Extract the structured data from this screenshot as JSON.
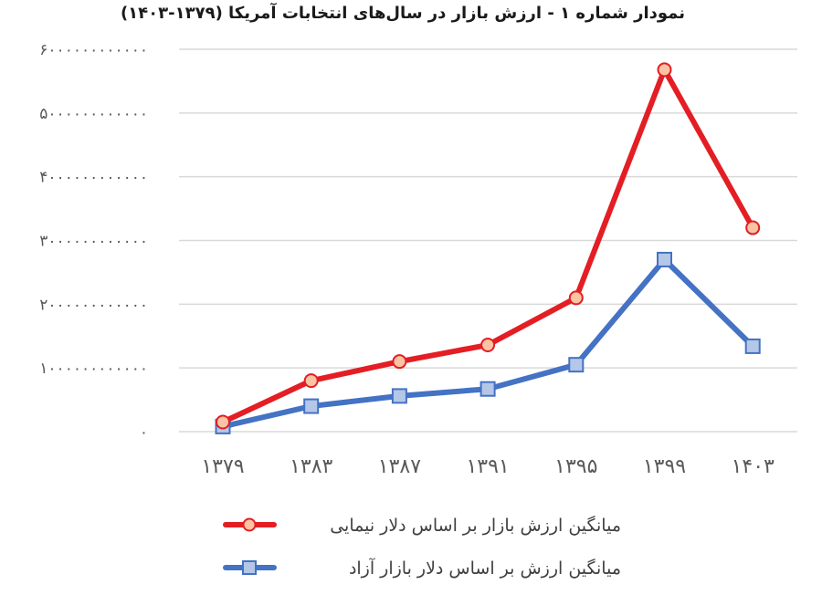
{
  "chart_data": {
    "type": "line",
    "title": "نمودار شماره ۱ - ارزش بازار در سال‌های انتخابات آمریکا (۱۳۷۹-۱۴۰۳)",
    "xlabel": "",
    "ylabel": "",
    "categories": [
      "۱۳۷۹",
      "۱۳۸۳",
      "۱۳۸۷",
      "۱۳۹۱",
      "۱۳۹۵",
      "۱۳۹۹",
      "۱۴۰۳"
    ],
    "categories_latin": [
      "1379",
      "1383",
      "1387",
      "1391",
      "1395",
      "1399",
      "1403"
    ],
    "y_ticks": [
      "۰",
      "۱۰۰۰۰۰۰۰۰۰۰۰۰",
      "۲۰۰۰۰۰۰۰۰۰۰۰۰",
      "۳۰۰۰۰۰۰۰۰۰۰۰۰",
      "۴۰۰۰۰۰۰۰۰۰۰۰۰",
      "۵۰۰۰۰۰۰۰۰۰۰۰۰",
      "۶۰۰۰۰۰۰۰۰۰۰۰۰"
    ],
    "y_tick_values": [
      0,
      1000000000000,
      2000000000000,
      3000000000000,
      4000000000000,
      5000000000000,
      6000000000000
    ],
    "ylim": [
      0,
      6000000000000
    ],
    "grid": true,
    "legend_position": "bottom",
    "series": [
      {
        "name": "میانگین ارزش بازار بر اساس  دلار نیمایی",
        "color": "#e31e24",
        "marker": "circle",
        "marker_fill": "#f8c4a4",
        "values": [
          150000000000,
          800000000000,
          1100000000000,
          1360000000000,
          2100000000000,
          5680000000000,
          3200000000000
        ]
      },
      {
        "name": "میانگین ارزش بر اساس دلار بازار آزاد",
        "color": "#4472c4",
        "marker": "square",
        "marker_fill": "#b4c7e7",
        "values": [
          80000000000,
          400000000000,
          560000000000,
          670000000000,
          1050000000000,
          2700000000000,
          1340000000000
        ]
      }
    ]
  }
}
